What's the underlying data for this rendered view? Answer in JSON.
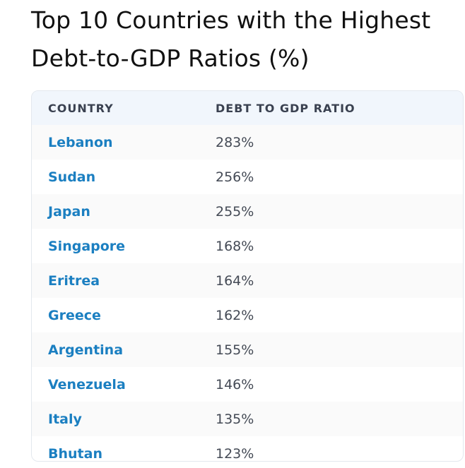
{
  "header": {
    "title": "Top 10 Countries with the Highest Debt-to-GDP Ratios (%)"
  },
  "table": {
    "columns": [
      "COUNTRY",
      "DEBT TO GDP RATIO"
    ],
    "rows": [
      [
        "Lebanon",
        "283%"
      ],
      [
        "Sudan",
        "256%"
      ],
      [
        "Japan",
        "255%"
      ],
      [
        "Singapore",
        "168%"
      ],
      [
        "Eritrea",
        "164%"
      ],
      [
        "Greece",
        "162%"
      ],
      [
        "Argentina",
        "155%"
      ],
      [
        "Venezuela",
        "146%"
      ],
      [
        "Italy",
        "135%"
      ],
      [
        "Bhutan",
        "123%"
      ]
    ]
  }
}
